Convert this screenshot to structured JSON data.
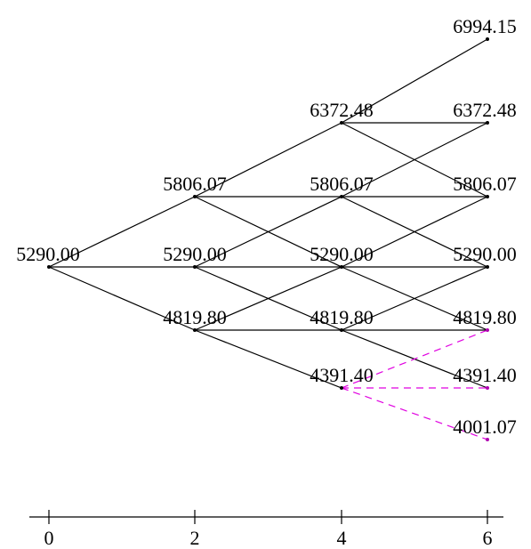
{
  "tree": {
    "nodes": [
      {
        "id": "n0_0",
        "t": 0,
        "label": "5290.00"
      },
      {
        "id": "n2_u",
        "t": 2,
        "label": "5806.07"
      },
      {
        "id": "n2_m",
        "t": 2,
        "label": "5290.00"
      },
      {
        "id": "n2_d",
        "t": 2,
        "label": "4819.80"
      },
      {
        "id": "n4_uu",
        "t": 4,
        "label": "6372.48"
      },
      {
        "id": "n4_u",
        "t": 4,
        "label": "5806.07"
      },
      {
        "id": "n4_m",
        "t": 4,
        "label": "5290.00"
      },
      {
        "id": "n4_d",
        "t": 4,
        "label": "4819.80"
      },
      {
        "id": "n4_dd",
        "t": 4,
        "label": "4391.40"
      },
      {
        "id": "n6_uuu",
        "t": 6,
        "label": "6994.15"
      },
      {
        "id": "n6_uu",
        "t": 6,
        "label": "6372.48"
      },
      {
        "id": "n6_u",
        "t": 6,
        "label": "5806.07"
      },
      {
        "id": "n6_m",
        "t": 6,
        "label": "5290.00"
      },
      {
        "id": "n6_d",
        "t": 6,
        "label": "4819.80"
      },
      {
        "id": "n6_dd",
        "t": 6,
        "label": "4391.40"
      },
      {
        "id": "n6_ddd",
        "t": 6,
        "label": "4001.07"
      }
    ],
    "edges": [
      [
        "n0_0",
        "n2_u"
      ],
      [
        "n0_0",
        "n2_m"
      ],
      [
        "n0_0",
        "n2_d"
      ],
      [
        "n2_u",
        "n4_uu"
      ],
      [
        "n2_u",
        "n4_u"
      ],
      [
        "n2_u",
        "n4_m"
      ],
      [
        "n2_m",
        "n4_u"
      ],
      [
        "n2_m",
        "n4_m"
      ],
      [
        "n2_m",
        "n4_d"
      ],
      [
        "n2_d",
        "n4_m"
      ],
      [
        "n2_d",
        "n4_d"
      ],
      [
        "n2_d",
        "n4_dd"
      ],
      [
        "n4_uu",
        "n6_uuu"
      ],
      [
        "n4_uu",
        "n6_uu"
      ],
      [
        "n4_uu",
        "n6_u"
      ],
      [
        "n4_u",
        "n6_uu"
      ],
      [
        "n4_u",
        "n6_u"
      ],
      [
        "n4_u",
        "n6_m"
      ],
      [
        "n4_m",
        "n6_u"
      ],
      [
        "n4_m",
        "n6_m"
      ],
      [
        "n4_m",
        "n6_d"
      ],
      [
        "n4_d",
        "n6_m"
      ],
      [
        "n4_d",
        "n6_d"
      ],
      [
        "n4_d",
        "n6_dd"
      ]
    ],
    "dashed_edges": [
      [
        "n4_dd",
        "n6_d"
      ],
      [
        "n4_dd",
        "n6_dd"
      ],
      [
        "n4_dd",
        "n6_ddd"
      ]
    ],
    "highlight_color": "#e000e0"
  },
  "axis": {
    "ticks": [
      "0",
      "2",
      "4",
      "6"
    ]
  }
}
